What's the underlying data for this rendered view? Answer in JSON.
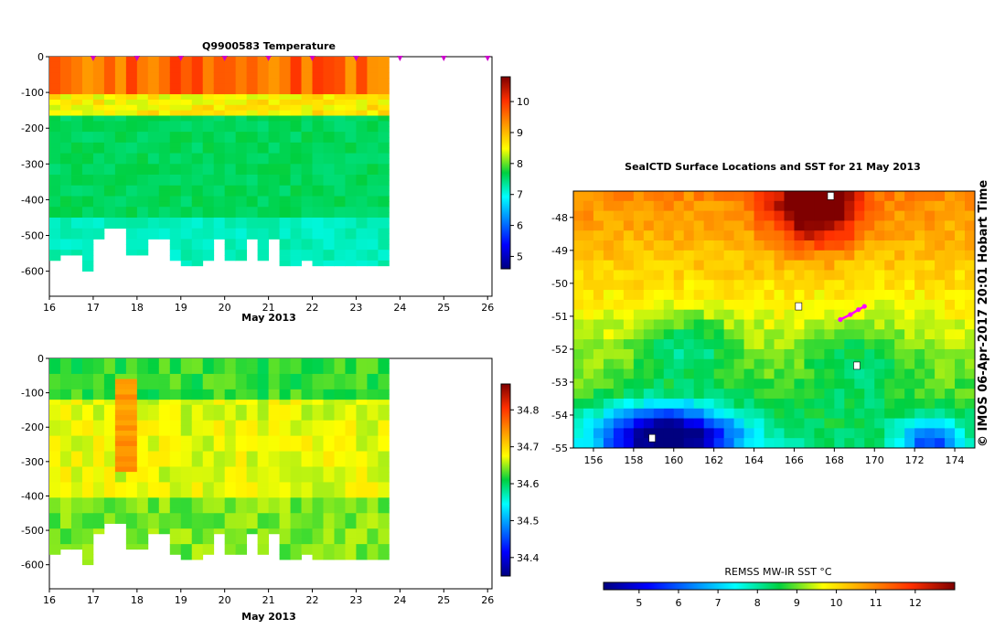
{
  "chart_data": [
    {
      "type": "heatmap",
      "title": "Q9900583  Temperature",
      "xlabel": "May 2013",
      "ylabel": "",
      "x_ticks": [
        16,
        17,
        18,
        19,
        20,
        21,
        22,
        23,
        24,
        25,
        26
      ],
      "xlim": [
        16,
        26.1
      ],
      "y_ticks": [
        0,
        -100,
        -200,
        -300,
        -400,
        -500,
        -600
      ],
      "ylim": [
        -670,
        0
      ],
      "colorbar": {
        "min": 4.6,
        "max": 10.8,
        "ticks": [
          5,
          6,
          7,
          8,
          9,
          10
        ],
        "colormap": "jet"
      },
      "profile_markers_day": [
        17,
        18,
        19,
        20,
        21,
        22,
        23,
        24,
        25,
        26
      ],
      "profiles": {
        "start_day": 16,
        "step_days": 0.25,
        "max_depth_m": [
          565,
          545,
          545,
          595,
          500,
          475,
          475,
          555,
          555,
          500,
          500,
          570,
          575,
          585,
          570,
          500,
          560,
          560,
          505,
          565,
          500,
          580,
          575,
          570,
          575,
          575,
          575,
          575,
          575,
          575,
          575
        ],
        "layer_values": [
          {
            "from": 0,
            "to": 100,
            "value": 9.6
          },
          {
            "from": 100,
            "to": 160,
            "value": 8.6
          },
          {
            "from": 160,
            "to": 450,
            "value": 7.6
          },
          {
            "from": 450,
            "to": 600,
            "value": 7.2
          }
        ]
      }
    },
    {
      "type": "heatmap",
      "title": "",
      "xlabel": "May 2013",
      "ylabel": "",
      "x_ticks": [
        16,
        17,
        18,
        19,
        20,
        21,
        22,
        23,
        24,
        25,
        26
      ],
      "xlim": [
        16,
        26.1
      ],
      "y_ticks": [
        0,
        -100,
        -200,
        -300,
        -400,
        -500,
        -600
      ],
      "ylim": [
        -670,
        0
      ],
      "colorbar": {
        "min": 34.35,
        "max": 34.87,
        "ticks": [
          34.4,
          34.5,
          34.6,
          34.7,
          34.8
        ],
        "colormap": "jet"
      },
      "profiles": {
        "start_day": 16,
        "step_days": 0.25,
        "max_depth_m": [
          565,
          545,
          545,
          595,
          500,
          475,
          475,
          555,
          555,
          500,
          500,
          570,
          575,
          585,
          570,
          500,
          560,
          560,
          505,
          565,
          500,
          580,
          575,
          570,
          575,
          575,
          575,
          575,
          575,
          575,
          575
        ],
        "layer_values": [
          {
            "from": 0,
            "to": 120,
            "value": 34.62
          },
          {
            "from": 120,
            "to": 400,
            "value": 34.67
          },
          {
            "from": 400,
            "to": 600,
            "value": 34.64
          }
        ],
        "high_salinity_day": 17.55
      }
    },
    {
      "type": "heatmap",
      "title": "SealCTD Surface Locations and SST for 21 May 2013",
      "xlabel": "",
      "ylabel": "",
      "x_ticks": [
        156,
        158,
        160,
        162,
        164,
        166,
        168,
        170,
        172,
        174
      ],
      "xlim": [
        155,
        175
      ],
      "y_ticks": [
        -48,
        -49,
        -50,
        -51,
        -52,
        -53,
        -54,
        -55
      ],
      "ylim": [
        -55,
        -47.2
      ],
      "colorbar": {
        "label": "REMSS MW-IR SST °C",
        "min": 4.1,
        "max": 13.0,
        "ticks": [
          5,
          6,
          7,
          8,
          9,
          10,
          11,
          12
        ],
        "colormap": "jet"
      },
      "sst_field": {
        "warm_centre": [
          166.8,
          -47.5
        ],
        "cold_zone": [
          159.5,
          -54.5
        ]
      },
      "seal_track": [
        [
          168.3,
          -51.1
        ],
        [
          168.8,
          -50.95
        ],
        [
          169.2,
          -50.8
        ],
        [
          169.5,
          -50.7
        ]
      ]
    }
  ],
  "credit": "© IMOS 06-Apr-2017 20:01 Hobart Time"
}
